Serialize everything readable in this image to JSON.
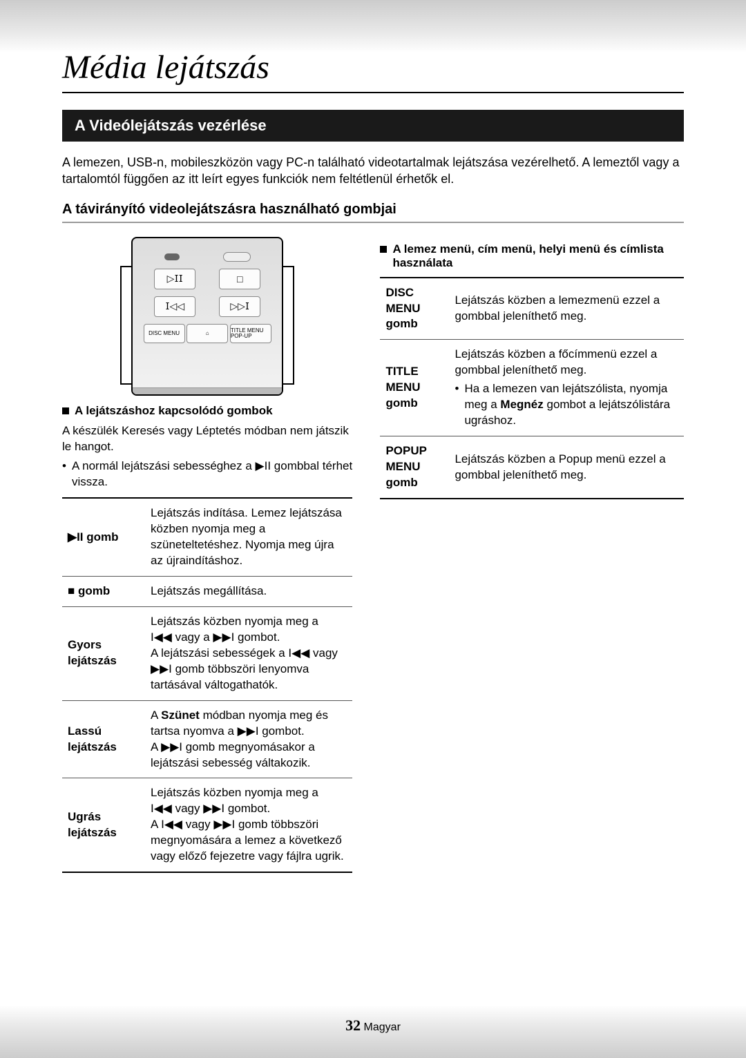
{
  "title": "Média lejátszás",
  "section_bar": "A Videólejátszás vezérlése",
  "intro": "A lemezen, USB-n, mobileszközön vagy PC-n található videotartalmak lejátszása vezérelhető. A lemeztől vagy a tartalomtól függően az itt leírt egyes funkciók nem feltétlenül érhetők el.",
  "sub_heading": "A távirányító videolejátszásra használható gombjai",
  "remote": {
    "disc_menu": "DISC MENU",
    "title_menu": "TITLE MENU POP-UP"
  },
  "left_bullet_heading": "A lejátszáshoz kapcsolódó gombok",
  "left_note1": "A készülék Keresés vagy Léptetés módban nem játszik le hangot.",
  "left_note2_pre": "A normál lejátszási sebességhez a ",
  "left_note2_post": " gombbal térhet vissza.",
  "play_icon": "▶II",
  "stop_icon": "■",
  "prev_icon": "I◀◀",
  "next_icon": "▶▶I",
  "table1": {
    "r1_label": "▶II gomb",
    "r1_desc": "Lejátszás indítása. Lemez lejátszása közben nyomja meg a szüneteltetéshez. Nyomja meg újra az újraindításhoz.",
    "r2_label": "■ gomb",
    "r2_desc": "Lejátszás megállítása.",
    "r3_label": "Gyors lejátszás",
    "r3_desc_l1": "Lejátszás közben nyomja meg a",
    "r3_desc_l2": " vagy a ",
    "r3_desc_l2b": " gombot.",
    "r3_desc_l3a": "A lejátszási sebességek a ",
    "r3_desc_l3b": " vagy",
    "r3_desc_l4": " gomb többszöri lenyomva tartásával váltogathatók.",
    "r4_label": "Lassú lejátszás",
    "r4_desc_l1a": "A ",
    "r4_desc_l1b": "Szünet",
    "r4_desc_l1c": " módban nyomja meg és tartsa nyomva a ",
    "r4_desc_l1d": " gombot.",
    "r4_desc_l2a": "A ",
    "r4_desc_l2b": " gomb megnyomásakor a lejátszási sebesség váltakozik.",
    "r5_label": "Ugrás lejátszás",
    "r5_desc_l1": "Lejátszás közben nyomja meg a",
    "r5_desc_l2a": " vagy ",
    "r5_desc_l2b": " gombot.",
    "r5_desc_l3a": "A ",
    "r5_desc_l3b": " vagy ",
    "r5_desc_l3c": " gomb többszöri megnyomására a lemez a következő vagy előző fejezetre vagy fájlra ugrik."
  },
  "right_bullet_heading": "A lemez menü, cím menü, helyi menü és címlista használata",
  "table2": {
    "r1_label": "DISC MENU gomb",
    "r1_desc": "Lejátszás közben a lemezmenü ezzel a gombbal jeleníthető meg.",
    "r2_label": "TITLE MENU gomb",
    "r2_desc_l1": "Lejátszás közben a főcímmenü ezzel a gombbal jeleníthető meg.",
    "r2_desc_b1a": "Ha a lemezen van lejátszólista, nyomja meg a ",
    "r2_desc_b1b": "Megnéz",
    "r2_desc_b1c": " gombot a lejátszólistára ugráshoz.",
    "r3_label": "POPUP MENU gomb",
    "r3_desc": "Lejátszás közben a Popup menü ezzel a gombbal jeleníthető meg."
  },
  "footer": {
    "page_num": "32",
    "lang": "Magyar"
  }
}
